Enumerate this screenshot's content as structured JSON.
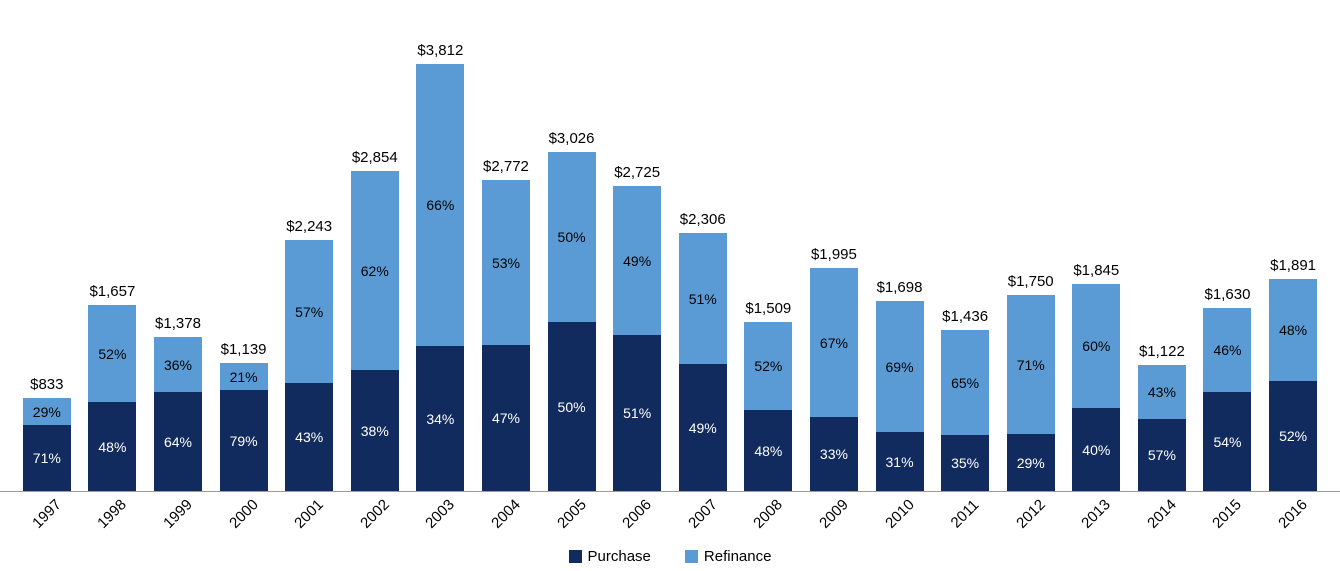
{
  "chart_data": {
    "type": "bar",
    "stacked": true,
    "title": "",
    "xlabel": "",
    "ylabel": "",
    "grid": false,
    "legend_position": "bottom",
    "axis_color": "#9c9c9c",
    "background_color": "#ffffff",
    "total_label_color": "#000000",
    "ylim": [
      0,
      3812
    ],
    "categories": [
      "1997",
      "1998",
      "1999",
      "2000",
      "2001",
      "2002",
      "2003",
      "2004",
      "2005",
      "2006",
      "2007",
      "2008",
      "2009",
      "2010",
      "2011",
      "2012",
      "2013",
      "2014",
      "2015",
      "2016"
    ],
    "totals": [
      833,
      1657,
      1378,
      1139,
      2243,
      2854,
      3812,
      2772,
      3026,
      2725,
      2306,
      1509,
      1995,
      1698,
      1436,
      1750,
      1845,
      1122,
      1630,
      1891
    ],
    "total_labels": [
      "$833",
      "$1,657",
      "$1,378",
      "$1,139",
      "$2,243",
      "$2,854",
      "$3,812",
      "$2,772",
      "$3,026",
      "$2,725",
      "$2,306",
      "$1,509",
      "$1,995",
      "$1,698",
      "$1,436",
      "$1,750",
      "$1,845",
      "$1,122",
      "$1,630",
      "$1,891"
    ],
    "series": [
      {
        "name": "Purchase",
        "color": "#122b5e",
        "label_text_color": "#ffffff",
        "percentages": [
          71,
          48,
          64,
          79,
          43,
          38,
          34,
          47,
          50,
          51,
          49,
          48,
          33,
          31,
          35,
          29,
          40,
          57,
          54,
          52
        ],
        "percentage_labels": [
          "71%",
          "48%",
          "64%",
          "79%",
          "43%",
          "38%",
          "34%",
          "47%",
          "50%",
          "51%",
          "49%",
          "48%",
          "33%",
          "31%",
          "35%",
          "29%",
          "40%",
          "57%",
          "54%",
          "52%"
        ]
      },
      {
        "name": "Refinance",
        "color": "#5b9bd5",
        "label_text_color": "#000000",
        "percentages": [
          29,
          52,
          36,
          21,
          57,
          62,
          66,
          53,
          50,
          49,
          51,
          52,
          67,
          69,
          65,
          71,
          60,
          43,
          46,
          48
        ],
        "percentage_labels": [
          "29%",
          "52%",
          "36%",
          "21%",
          "57%",
          "62%",
          "66%",
          "53%",
          "50%",
          "49%",
          "51%",
          "52%",
          "67%",
          "69%",
          "65%",
          "71%",
          "60%",
          "43%",
          "46%",
          "48%"
        ]
      }
    ]
  }
}
